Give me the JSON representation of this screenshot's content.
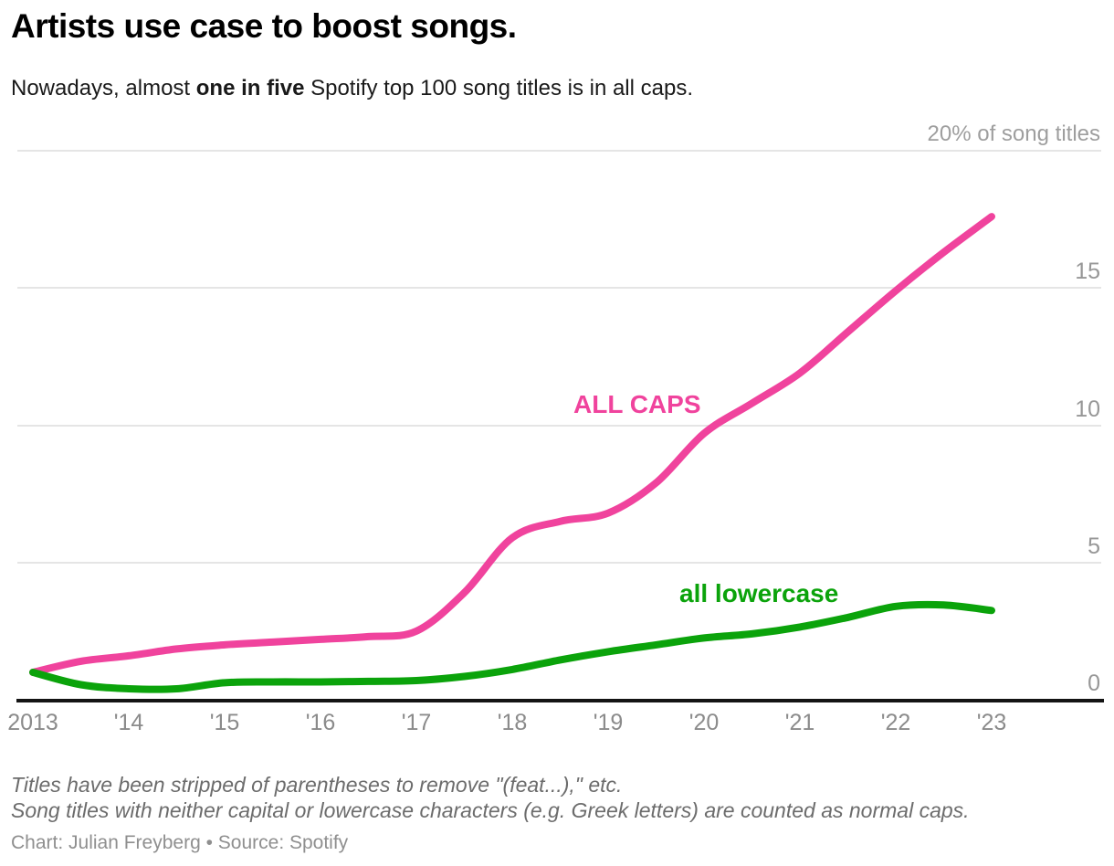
{
  "header": {
    "title": "Artists use case to boost songs.",
    "subtitle_prefix": "Nowadays, almost ",
    "subtitle_bold": "one in five",
    "subtitle_suffix": " Spotify top 100 song titles is in all caps."
  },
  "chart_data": {
    "type": "line",
    "title": "Artists use case to boost songs.",
    "subtitle": "Nowadays, almost one in five Spotify top 100 song titles is in all caps.",
    "xlabel": "",
    "ylabel": "% of song titles",
    "legend_position": "inline-labels",
    "grid": true,
    "x_axis": {
      "range": [
        2013,
        2023
      ],
      "ticks": [
        {
          "year": 2013,
          "label": "2013"
        },
        {
          "year": 2014,
          "label": "'14"
        },
        {
          "year": 2015,
          "label": "'15"
        },
        {
          "year": 2016,
          "label": "'16"
        },
        {
          "year": 2017,
          "label": "'17"
        },
        {
          "year": 2018,
          "label": "'18"
        },
        {
          "year": 2019,
          "label": "'19"
        },
        {
          "year": 2020,
          "label": "'20"
        },
        {
          "year": 2021,
          "label": "'21"
        },
        {
          "year": 2022,
          "label": "'22"
        },
        {
          "year": 2023,
          "label": "'23"
        }
      ]
    },
    "y_axis": {
      "range": [
        0,
        20
      ],
      "unit_label": "20% of song titles",
      "gridline_values": [
        20,
        15,
        10,
        5
      ],
      "tick_labels": [
        {
          "value": 15,
          "label": "15"
        },
        {
          "value": 10,
          "label": "10"
        },
        {
          "value": 5,
          "label": "5"
        },
        {
          "value": 0,
          "label": "0"
        }
      ]
    },
    "series": [
      {
        "name": "ALL CAPS",
        "color": "#f0439d",
        "points": [
          [
            2013,
            1.0
          ],
          [
            2013.5,
            1.4
          ],
          [
            2014,
            1.6
          ],
          [
            2014.5,
            1.85
          ],
          [
            2015,
            2.0
          ],
          [
            2015.5,
            2.1
          ],
          [
            2016,
            2.2
          ],
          [
            2016.5,
            2.3
          ],
          [
            2017,
            2.5
          ],
          [
            2017.5,
            3.9
          ],
          [
            2018,
            5.9
          ],
          [
            2018.5,
            6.5
          ],
          [
            2019,
            6.8
          ],
          [
            2019.5,
            7.9
          ],
          [
            2020,
            9.7
          ],
          [
            2020.5,
            10.8
          ],
          [
            2021,
            11.9
          ],
          [
            2021.5,
            13.4
          ],
          [
            2022,
            14.9
          ],
          [
            2022.5,
            16.3
          ],
          [
            2023,
            17.6
          ]
        ]
      },
      {
        "name": "all lowercase",
        "color": "#0ba30b",
        "points": [
          [
            2013,
            1.0
          ],
          [
            2013.5,
            0.55
          ],
          [
            2014,
            0.4
          ],
          [
            2014.5,
            0.4
          ],
          [
            2015,
            0.62
          ],
          [
            2015.5,
            0.65
          ],
          [
            2016,
            0.65
          ],
          [
            2016.5,
            0.67
          ],
          [
            2017,
            0.7
          ],
          [
            2017.5,
            0.85
          ],
          [
            2018,
            1.1
          ],
          [
            2018.5,
            1.45
          ],
          [
            2019,
            1.75
          ],
          [
            2019.5,
            2.0
          ],
          [
            2020,
            2.25
          ],
          [
            2020.5,
            2.4
          ],
          [
            2021,
            2.65
          ],
          [
            2021.5,
            3.0
          ],
          [
            2022,
            3.4
          ],
          [
            2022.5,
            3.45
          ],
          [
            2023,
            3.25
          ]
        ]
      }
    ]
  },
  "colors": {
    "all_caps": "#f0439d",
    "all_lowercase": "#0ba30b",
    "gridline": "#e5e5e5",
    "axis": "#141414",
    "tick_text": "#8f8f8f"
  },
  "footer": {
    "note1": "Titles have been stripped of parentheses to remove \"(feat...),\" etc.",
    "note2": "Song titles with neither capital or lowercase characters (e.g. Greek letters) are counted as normal caps.",
    "credit": "Chart: Julian Freyberg • Source: Spotify"
  }
}
